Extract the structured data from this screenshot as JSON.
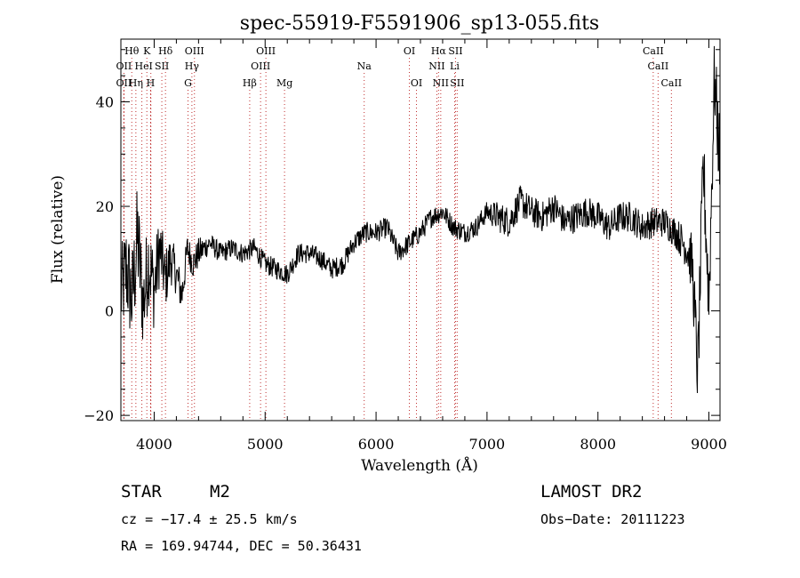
{
  "chart_data": {
    "type": "line",
    "title": "spec-55919-F5591906_sp13-055.fits",
    "xlabel": "Wavelength (Å)",
    "ylabel": "Flux (relative)",
    "xlim": [
      3700,
      9100
    ],
    "ylim": [
      -21,
      52
    ],
    "xticks": [
      4000,
      5000,
      6000,
      7000,
      8000,
      9000
    ],
    "yticks": [
      -20,
      0,
      20,
      40
    ],
    "grid": false,
    "spectrum_anchor_points": {
      "x": [
        3700,
        3750,
        3800,
        3850,
        3900,
        3950,
        4000,
        4050,
        4100,
        4150,
        4200,
        4250,
        4300,
        4350,
        4400,
        4500,
        4600,
        4700,
        4800,
        4900,
        5000,
        5100,
        5200,
        5300,
        5400,
        5500,
        5600,
        5700,
        5800,
        5900,
        6000,
        6100,
        6200,
        6300,
        6400,
        6500,
        6600,
        6700,
        6800,
        6900,
        7000,
        7100,
        7200,
        7300,
        7400,
        7500,
        7600,
        7700,
        7800,
        7900,
        8000,
        8100,
        8200,
        8300,
        8400,
        8500,
        8600,
        8700,
        8800,
        8850,
        8900,
        8950,
        9000,
        9050,
        9100
      ],
      "y": [
        3,
        8,
        2,
        14,
        1,
        10,
        4,
        12,
        6,
        10,
        7,
        3,
        12,
        9,
        11,
        13,
        11,
        12,
        11,
        12,
        9,
        8,
        7,
        11,
        11,
        10,
        8,
        9,
        13,
        15,
        15,
        16,
        11,
        13,
        15,
        18,
        19,
        16,
        15,
        16,
        19,
        18,
        17,
        21,
        19,
        18,
        20,
        17,
        18,
        19,
        18,
        16,
        18,
        18,
        16,
        17,
        17,
        15,
        12,
        9,
        -12,
        28,
        2,
        45,
        28
      ],
      "noise_amplitude": [
        9,
        10,
        10,
        11,
        9,
        9,
        8,
        7,
        6,
        5,
        4,
        4,
        3,
        3,
        3,
        2,
        2,
        2,
        2,
        2,
        2,
        2,
        2,
        2,
        2,
        2,
        2,
        2,
        2,
        2,
        2,
        2,
        2,
        2,
        2,
        2,
        2,
        2,
        2,
        2,
        2,
        3,
        3,
        3,
        3,
        3,
        3,
        3,
        3,
        3,
        3,
        3,
        3,
        3,
        3,
        3,
        3,
        3,
        4,
        6,
        8,
        8,
        8,
        8,
        8
      ]
    },
    "spectral_lines": [
      {
        "name": "Hθ",
        "x": 3798,
        "row": 0
      },
      {
        "name": "K",
        "x": 3934,
        "row": 0
      },
      {
        "name": "Hδ",
        "x": 4102,
        "row": 0
      },
      {
        "name": "OIII",
        "x": 4363,
        "row": 0
      },
      {
        "name": "OIII",
        "x": 5007,
        "row": 0
      },
      {
        "name": "OI",
        "x": 6300,
        "row": 0
      },
      {
        "name": "Hα",
        "x": 6563,
        "row": 0
      },
      {
        "name": "SII",
        "x": 6716,
        "row": 0
      },
      {
        "name": "CaII",
        "x": 8498,
        "row": 0
      },
      {
        "name": "OII",
        "x": 3727,
        "row": 1
      },
      {
        "name": "He",
        "x": 3889,
        "row": 1
      },
      {
        "name": "I",
        "x": 3970,
        "row": 1
      },
      {
        "name": "SII",
        "x": 4069,
        "row": 1
      },
      {
        "name": "Hγ",
        "x": 4340,
        "row": 1
      },
      {
        "name": "OIII",
        "x": 4959,
        "row": 1
      },
      {
        "name": "Na",
        "x": 5893,
        "row": 1
      },
      {
        "name": "NII",
        "x": 6548,
        "row": 1
      },
      {
        "name": "Li",
        "x": 6708,
        "row": 1
      },
      {
        "name": "CaII",
        "x": 8542,
        "row": 1
      },
      {
        "name": "OII",
        "x": 3727,
        "row": 2
      },
      {
        "name": "Hη",
        "x": 3835,
        "row": 2
      },
      {
        "name": "H",
        "x": 3968,
        "row": 2
      },
      {
        "name": "G",
        "x": 4305,
        "row": 2
      },
      {
        "name": "Hβ",
        "x": 4861,
        "row": 2
      },
      {
        "name": "Mg",
        "x": 5175,
        "row": 2
      },
      {
        "name": "OI",
        "x": 6364,
        "row": 2
      },
      {
        "name": "NII",
        "x": 6583,
        "row": 2
      },
      {
        "name": "SII",
        "x": 6731,
        "row": 2
      },
      {
        "name": "CaII",
        "x": 8662,
        "row": 2
      }
    ]
  },
  "info": {
    "object_class": "STAR",
    "subclass": "M2",
    "survey": "LAMOST DR2",
    "cz": "cz = −17.4 ± 25.5 km/s",
    "obs_date": "Obs−Date: 20111223",
    "coords": "RA = 169.94744, DEC =  50.36431"
  },
  "colors": {
    "line": "#000000",
    "marker_lines": "#c03030",
    "background": "#ffffff"
  }
}
